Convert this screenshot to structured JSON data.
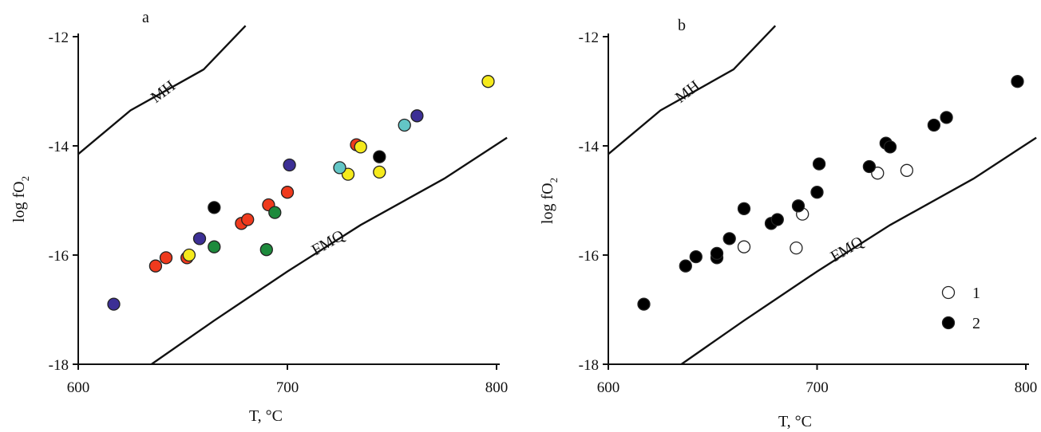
{
  "chart_data": [
    {
      "type": "scatter",
      "panel_label": "a",
      "xlabel": "T, °C",
      "ylabel_main": "log fO",
      "ylabel_sub": "2",
      "xlim": [
        600,
        800
      ],
      "ylim": [
        -18,
        -12
      ],
      "x_ticks": [
        600,
        700,
        800
      ],
      "y_ticks": [
        -12,
        -14,
        -16,
        -18
      ],
      "curves": [
        {
          "name": "MH",
          "points": [
            [
              600,
              -14.15
            ],
            [
              625,
              -13.35
            ],
            [
              660,
              -12.6
            ],
            [
              680,
              -11.8
            ]
          ]
        },
        {
          "name": "FMQ",
          "points": [
            [
              635,
              -18
            ],
            [
              665,
              -17.2
            ],
            [
              700,
              -16.3
            ],
            [
              735,
              -15.45
            ],
            [
              775,
              -14.6
            ],
            [
              805,
              -13.85
            ]
          ]
        }
      ],
      "series": [
        {
          "color": "#3c2f95",
          "points": [
            [
              617,
              -16.9
            ],
            [
              658,
              -15.7
            ],
            [
              701,
              -14.35
            ],
            [
              762,
              -13.45
            ]
          ]
        },
        {
          "color": "#ef3a1d",
          "points": [
            [
              637,
              -16.2
            ],
            [
              642,
              -16.05
            ],
            [
              652,
              -16.05
            ],
            [
              678,
              -15.42
            ],
            [
              681,
              -15.35
            ],
            [
              691,
              -15.08
            ],
            [
              700,
              -14.85
            ],
            [
              733,
              -13.98
            ]
          ]
        },
        {
          "color": "#1d8a3c",
          "points": [
            [
              665,
              -15.85
            ],
            [
              690,
              -15.9
            ],
            [
              694,
              -15.22
            ]
          ]
        },
        {
          "color": "#f5ea1c",
          "points": [
            [
              653,
              -16.0
            ],
            [
              729,
              -14.52
            ],
            [
              735,
              -14.02
            ],
            [
              744,
              -14.48
            ],
            [
              796,
              -12.82
            ]
          ]
        },
        {
          "color": "#63c6c6",
          "points": [
            [
              725,
              -14.4
            ],
            [
              756,
              -13.62
            ]
          ]
        },
        {
          "color": "#000000",
          "points": [
            [
              665,
              -15.13
            ],
            [
              744,
              -14.2
            ]
          ]
        }
      ]
    },
    {
      "type": "scatter",
      "panel_label": "b",
      "xlabel": "T, °C",
      "ylabel_main": "log fO",
      "ylabel_sub": "2",
      "xlim": [
        600,
        800
      ],
      "ylim": [
        -18,
        -12
      ],
      "x_ticks": [
        600,
        700,
        800
      ],
      "y_ticks": [
        -12,
        -14,
        -16,
        -18
      ],
      "curves": [
        {
          "name": "MH",
          "points": [
            [
              600,
              -14.15
            ],
            [
              625,
              -13.35
            ],
            [
              660,
              -12.6
            ],
            [
              680,
              -11.8
            ]
          ]
        },
        {
          "name": "FMQ",
          "points": [
            [
              635,
              -18
            ],
            [
              665,
              -17.2
            ],
            [
              700,
              -16.3
            ],
            [
              735,
              -15.45
            ],
            [
              775,
              -14.6
            ],
            [
              805,
              -13.85
            ]
          ]
        }
      ],
      "legend": [
        {
          "label": "1",
          "style": "open"
        },
        {
          "label": "2",
          "style": "filled"
        }
      ],
      "series": [
        {
          "name": "1",
          "style": "open",
          "points": [
            [
              665,
              -15.85
            ],
            [
              690,
              -15.87
            ],
            [
              693,
              -15.25
            ],
            [
              729,
              -14.5
            ],
            [
              743,
              -14.45
            ]
          ]
        },
        {
          "name": "2",
          "style": "filled",
          "points": [
            [
              617,
              -16.9
            ],
            [
              637,
              -16.2
            ],
            [
              642,
              -16.03
            ],
            [
              652,
              -16.05
            ],
            [
              652,
              -15.97
            ],
            [
              658,
              -15.7
            ],
            [
              665,
              -15.15
            ],
            [
              678,
              -15.42
            ],
            [
              681,
              -15.35
            ],
            [
              691,
              -15.1
            ],
            [
              700,
              -14.85
            ],
            [
              701,
              -14.33
            ],
            [
              725,
              -14.38
            ],
            [
              733,
              -13.95
            ],
            [
              735,
              -14.02
            ],
            [
              756,
              -13.62
            ],
            [
              762,
              -13.48
            ],
            [
              796,
              -12.82
            ]
          ]
        }
      ]
    }
  ]
}
